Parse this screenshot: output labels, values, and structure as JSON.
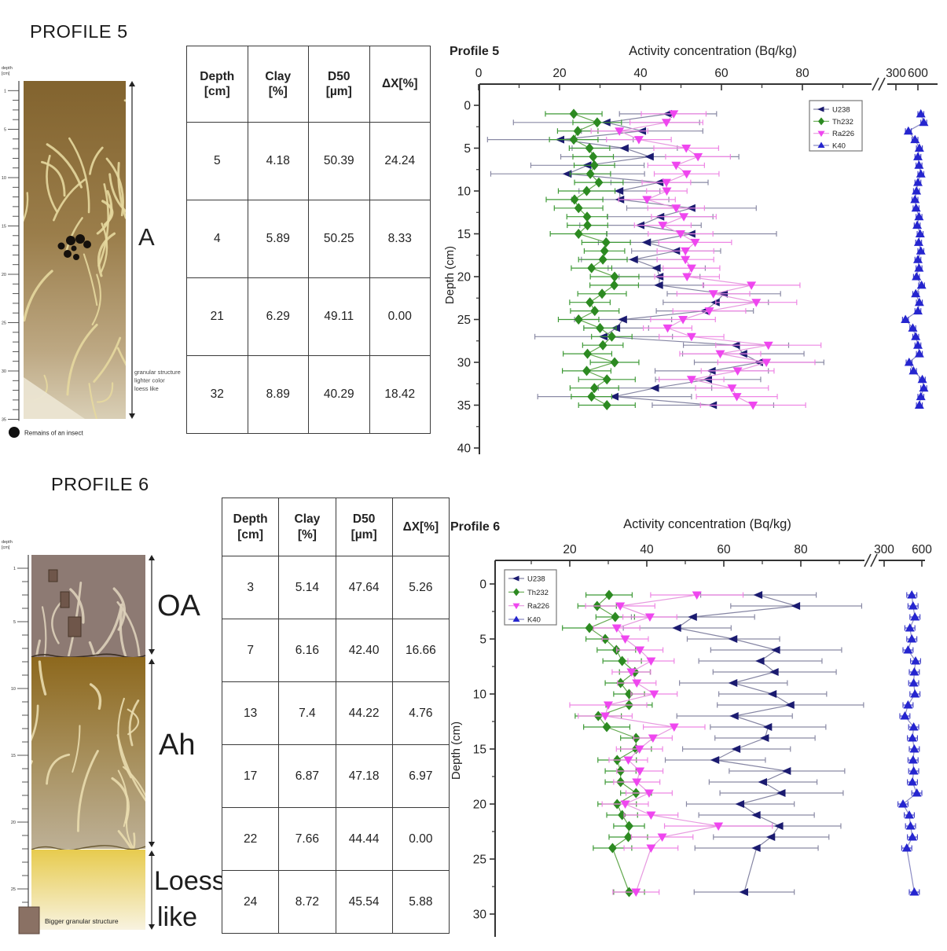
{
  "profile5": {
    "section_title": "PROFILE 5",
    "illustration": {
      "depth_scale_label": [
        "depth",
        "[cm]"
      ],
      "ruler_numbers": [
        1,
        5,
        10,
        15,
        20,
        25,
        30,
        35
      ],
      "ruler_max_cm": 35,
      "horizon_label": "A",
      "annotation_lines": [
        "granular structure",
        "lighter color",
        "loess like"
      ],
      "legend_label": "Remains of an insect",
      "colors": {
        "soil_top": "#82632e",
        "soil_bottom": "#d9cfb6",
        "root_trace": "#e6d89e",
        "insect_dot": "#15100c"
      }
    },
    "table": {
      "headers": [
        [
          "Depth",
          "[cm]"
        ],
        [
          "Clay",
          "[%]"
        ],
        [
          "D50",
          "[µm]"
        ],
        [
          "ΔX[%]"
        ]
      ],
      "rows": [
        [
          "5",
          "4.18",
          "50.39",
          "24.24"
        ],
        [
          "4",
          "5.89",
          "50.25",
          "8.33"
        ],
        [
          "21",
          "6.29",
          "49.11",
          "0.00"
        ],
        [
          "32",
          "8.89",
          "40.29",
          "18.42"
        ]
      ]
    }
  },
  "profile6": {
    "section_title": "PROFILE 6",
    "illustration": {
      "depth_scale_label": [
        "depth",
        "[cm]"
      ],
      "ruler_numbers": [
        1,
        5,
        10,
        15,
        20,
        25
      ],
      "ruler_max_cm": 28,
      "horizon_labels": [
        "OA",
        "Ah",
        "Loess like"
      ],
      "legend_label": "Bigger granular structure",
      "colors": {
        "oa": "#8d7a73",
        "ah_top": "#8d681d",
        "ah_bottom": "#bdb096",
        "loess_top": "#e7cb4e",
        "loess_bottom": "#f8f3e0",
        "granular_block": "#6f564a",
        "root_trace": "#e9dcae"
      }
    },
    "table": {
      "headers": [
        [
          "Depth",
          "[cm]"
        ],
        [
          "Clay",
          "[%]"
        ],
        [
          "D50",
          "[µm]"
        ],
        [
          "ΔX[%]"
        ]
      ],
      "rows": [
        [
          "3",
          "5.14",
          "47.64",
          "5.26"
        ],
        [
          "7",
          "6.16",
          "42.40",
          "16.66"
        ],
        [
          "13",
          "7.4",
          "44.22",
          "4.76"
        ],
        [
          "17",
          "6.87",
          "47.18",
          "6.97"
        ],
        [
          "22",
          "7.66",
          "44.44",
          "0.00"
        ],
        [
          "24",
          "8.72",
          "45.54",
          "5.88"
        ]
      ]
    }
  },
  "chart_data": [
    {
      "type": "scatter",
      "profile_label": "Profile 5",
      "title": "Activity concentration (Bq/kg)",
      "ylabel": "Depth (cm)",
      "grid": false,
      "legend_position": "top-right",
      "x_axis": {
        "main_ticks": [
          0,
          20,
          40,
          60,
          80
        ],
        "minor_ticks": [
          10,
          30,
          50,
          70,
          90
        ],
        "broken_axis": true,
        "break_ticks": [
          300,
          600
        ]
      },
      "y_axis": {
        "ticks": [
          0,
          5,
          10,
          15,
          20,
          25,
          30,
          35,
          40
        ],
        "range": [
          0,
          40
        ]
      },
      "depths": [
        1,
        2,
        3,
        4,
        5,
        6,
        7,
        8,
        9,
        10,
        11,
        12,
        13,
        14,
        15,
        16,
        17,
        18,
        19,
        20,
        21,
        22,
        23,
        24,
        25,
        26,
        27,
        28,
        29,
        30,
        31,
        32,
        33,
        34,
        35
      ],
      "series": [
        {
          "name": "U238",
          "marker": "left-triangle",
          "color": "#1b1b70",
          "line_color": "#8585a3",
          "error_color": "#8a8aa5",
          "values": [
            46.8,
            31.6,
            40.4,
            20.2,
            36.1,
            42.3,
            26.9,
            22.0,
            44.7,
            34.8,
            35.0,
            52.6,
            44.9,
            40.0,
            52.6,
            41.6,
            48.8,
            38.4,
            44.0,
            44.7,
            44.6,
            60.6,
            58.6,
            55.9,
            35.7,
            34.0,
            30.9,
            63.6,
            65.4,
            69.3,
            57.6,
            56.7,
            43.6,
            33.6,
            57.9
          ],
          "errors": [
            12,
            23,
            15,
            18,
            13,
            22,
            14,
            19,
            12,
            10,
            12,
            16,
            13,
            15,
            21,
            12,
            11,
            13,
            12,
            10,
            11,
            14,
            13,
            12,
            12,
            8,
            17,
            13,
            15,
            16,
            14,
            13,
            14,
            19,
            15
          ]
        },
        {
          "name": "Th232",
          "marker": "diamond",
          "color": "#2c8a21",
          "line_color": "#63a94f",
          "error_color": "#3f9a37",
          "values": [
            23.5,
            29.3,
            24.5,
            23.5,
            27.4,
            28.3,
            28.6,
            27.6,
            29.7,
            26.7,
            23.7,
            24.7,
            26.8,
            26.9,
            24.7,
            31.5,
            31.1,
            30.7,
            27.9,
            33.6,
            33.5,
            30.5,
            27.5,
            28.7,
            24.7,
            30.0,
            32.9,
            30.7,
            26.9,
            33.6,
            26.7,
            31.7,
            28.6,
            27.9,
            31.7
          ],
          "errors": [
            7,
            6,
            5,
            6,
            5,
            5,
            5,
            5,
            6,
            7,
            7,
            6,
            5,
            5,
            7,
            6,
            5,
            6,
            5,
            6,
            6,
            6,
            5,
            6,
            5,
            4,
            5,
            5,
            6,
            6,
            6,
            7,
            6,
            5,
            7
          ]
        },
        {
          "name": "Ra226",
          "marker": "down-triangle",
          "color": "#ef46ef",
          "line_color": "#e79ae0",
          "error_color": "#ee86e4",
          "values": [
            48.2,
            46.4,
            34.8,
            39.6,
            51.3,
            54.2,
            48.8,
            51.4,
            46.4,
            46.5,
            41.6,
            48.8,
            50.7,
            45.5,
            49.9,
            53.5,
            51.1,
            51.1,
            52.6,
            51.5,
            67.4,
            58.0,
            68.6,
            57.0,
            50.5,
            46.7,
            52.6,
            71.6,
            59.7,
            71.1,
            64.0,
            52.6,
            62.6,
            63.8,
            67.8
          ],
          "errors": [
            8,
            9,
            7,
            8,
            8,
            8,
            7,
            8,
            6,
            5,
            7,
            7,
            8,
            7,
            8,
            9,
            7,
            7,
            7,
            8,
            12,
            9,
            10,
            9,
            8,
            6,
            8,
            13,
            10,
            12,
            9,
            8,
            9,
            10,
            13
          ]
        },
        {
          "name": "K40",
          "marker": "up-triangle",
          "color": "#2525cf",
          "line_color": "#8b8bc4",
          "error_color": "#4646c8",
          "values": [
            640,
            680,
            470,
            560,
            620,
            600,
            615,
            640,
            600,
            580,
            560,
            575,
            615,
            590,
            630,
            610,
            640,
            600,
            615,
            580,
            650,
            570,
            620,
            600,
            430,
            530,
            570,
            600,
            620,
            480,
            540,
            660,
            680,
            640,
            620
          ],
          "errors": [
            40,
            40,
            40,
            40,
            40,
            40,
            40,
            40,
            40,
            40,
            40,
            40,
            40,
            40,
            40,
            40,
            40,
            40,
            40,
            40,
            40,
            40,
            40,
            40,
            40,
            40,
            40,
            40,
            40,
            40,
            40,
            40,
            40,
            40,
            40
          ]
        }
      ]
    },
    {
      "type": "scatter",
      "profile_label": "Profile 6",
      "title": "Activity concentration (Bq/kg)",
      "ylabel": "Depth (cm)",
      "grid": false,
      "legend_position": "top-left",
      "x_axis": {
        "main_ticks": [
          20,
          40,
          60,
          80
        ],
        "minor_ticks": [
          10,
          30,
          50,
          70,
          90
        ],
        "broken_axis": true,
        "break_ticks": [
          300,
          600
        ]
      },
      "y_axis": {
        "ticks": [
          0,
          5,
          10,
          15,
          20,
          25,
          30
        ],
        "range": [
          0,
          30
        ]
      },
      "depths": [
        1,
        2,
        3,
        4,
        5,
        6,
        7,
        8,
        9,
        10,
        11,
        12,
        13,
        14,
        15,
        16,
        17,
        18,
        19,
        20,
        21,
        22,
        23,
        24,
        28
      ],
      "series": [
        {
          "name": "U238",
          "marker": "left-triangle",
          "color": "#1b1b70",
          "line_color": "#8585a3",
          "error_color": "#8a8aa5",
          "values": [
            69.0,
            78.8,
            52.0,
            47.9,
            62.5,
            73.6,
            69.5,
            73.2,
            62.5,
            72.7,
            77.3,
            62.8,
            71.5,
            70.7,
            63.3,
            57.8,
            76.4,
            70.2,
            75.0,
            64.3,
            68.5,
            74.4,
            72.3,
            68.5,
            65.3
          ],
          "errors": [
            15,
            17,
            16,
            14,
            12,
            17,
            16,
            16,
            14,
            14,
            19,
            15,
            15,
            13,
            14,
            13,
            15,
            14,
            16,
            14,
            15,
            16,
            15,
            16,
            13
          ]
        },
        {
          "name": "Th232",
          "marker": "diamond",
          "color": "#2c8a21",
          "line_color": "#63a94f",
          "error_color": "#3f9a37",
          "values": [
            30.2,
            27.1,
            31.8,
            25.1,
            29.2,
            32.1,
            33.6,
            36.9,
            33.2,
            35.4,
            35.4,
            27.4,
            29.6,
            37.2,
            37.2,
            32.3,
            33.2,
            33.2,
            37.2,
            32.3,
            33.6,
            35.4,
            35.2,
            31.1,
            35.4
          ],
          "errors": [
            6,
            5,
            5,
            7,
            5,
            5,
            5,
            4,
            4,
            4,
            6,
            6,
            6,
            4,
            4,
            5,
            4,
            4,
            4,
            5,
            4,
            4,
            5,
            5,
            4
          ]
        },
        {
          "name": "Ra226",
          "marker": "down-triangle",
          "color": "#ef46ef",
          "line_color": "#e79ae0",
          "error_color": "#ee86e4",
          "values": [
            53.0,
            33.1,
            40.8,
            32.2,
            34.4,
            38.2,
            41.1,
            36.0,
            37.4,
            41.9,
            30.0,
            29.2,
            47.1,
            41.6,
            38.1,
            35.2,
            38.2,
            37.4,
            40.6,
            34.4,
            41.1,
            58.6,
            44.0,
            41.1,
            37.2
          ],
          "errors": [
            12,
            9,
            7,
            6,
            6,
            6,
            6,
            5,
            5,
            6,
            10,
            7,
            8,
            5,
            6,
            5,
            6,
            6,
            6,
            6,
            7,
            14,
            8,
            7,
            6
          ]
        },
        {
          "name": "K40",
          "marker": "up-triangle",
          "color": "#2525cf",
          "line_color": "#8b8bc4",
          "error_color": "#4646c8",
          "values": [
            520,
            530,
            545,
            505,
            520,
            490,
            550,
            540,
            535,
            545,
            490,
            465,
            535,
            525,
            540,
            530,
            535,
            525,
            560,
            450,
            500,
            510,
            525,
            480,
            540
          ],
          "errors": [
            40,
            40,
            40,
            40,
            40,
            40,
            40,
            40,
            40,
            40,
            40,
            40,
            40,
            40,
            40,
            40,
            40,
            40,
            40,
            40,
            40,
            40,
            40,
            40,
            40
          ]
        }
      ]
    }
  ]
}
